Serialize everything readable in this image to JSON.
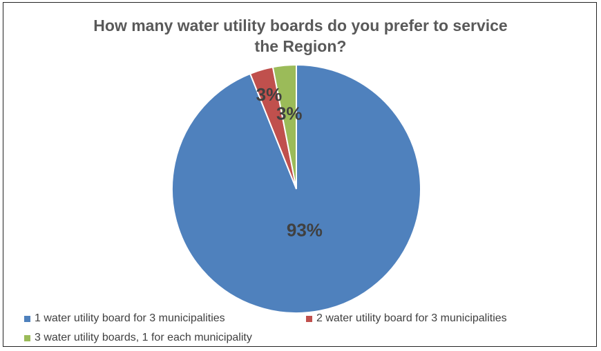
{
  "chart_data": {
    "type": "pie",
    "title_lines": [
      "How many water utility boards do you prefer to service",
      "the Region?"
    ],
    "slices": [
      {
        "label": "1 water utility board for 3 municipalities",
        "value": 93,
        "display": "93%",
        "color": "#4F81BD"
      },
      {
        "label": "2 water utility board for 3 municipalities",
        "value": 3,
        "display": "3%",
        "color": "#C0504D"
      },
      {
        "label": "3 water utility boards, 1 for each municipality",
        "value": 3,
        "display": "3%",
        "color": "#9BBB59"
      }
    ],
    "legend_position": "bottom"
  }
}
